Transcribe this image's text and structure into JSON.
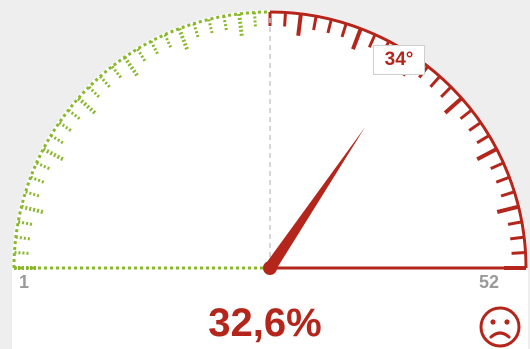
{
  "gauge": {
    "min_label": "1",
    "max_label": "52",
    "angle_badge": "34°",
    "percent_text": "32,6%",
    "needle_angle_deg": 34,
    "green_color": "#8ab82d",
    "red_color": "#b4261c"
  },
  "status_icon": "sad-face-icon"
}
